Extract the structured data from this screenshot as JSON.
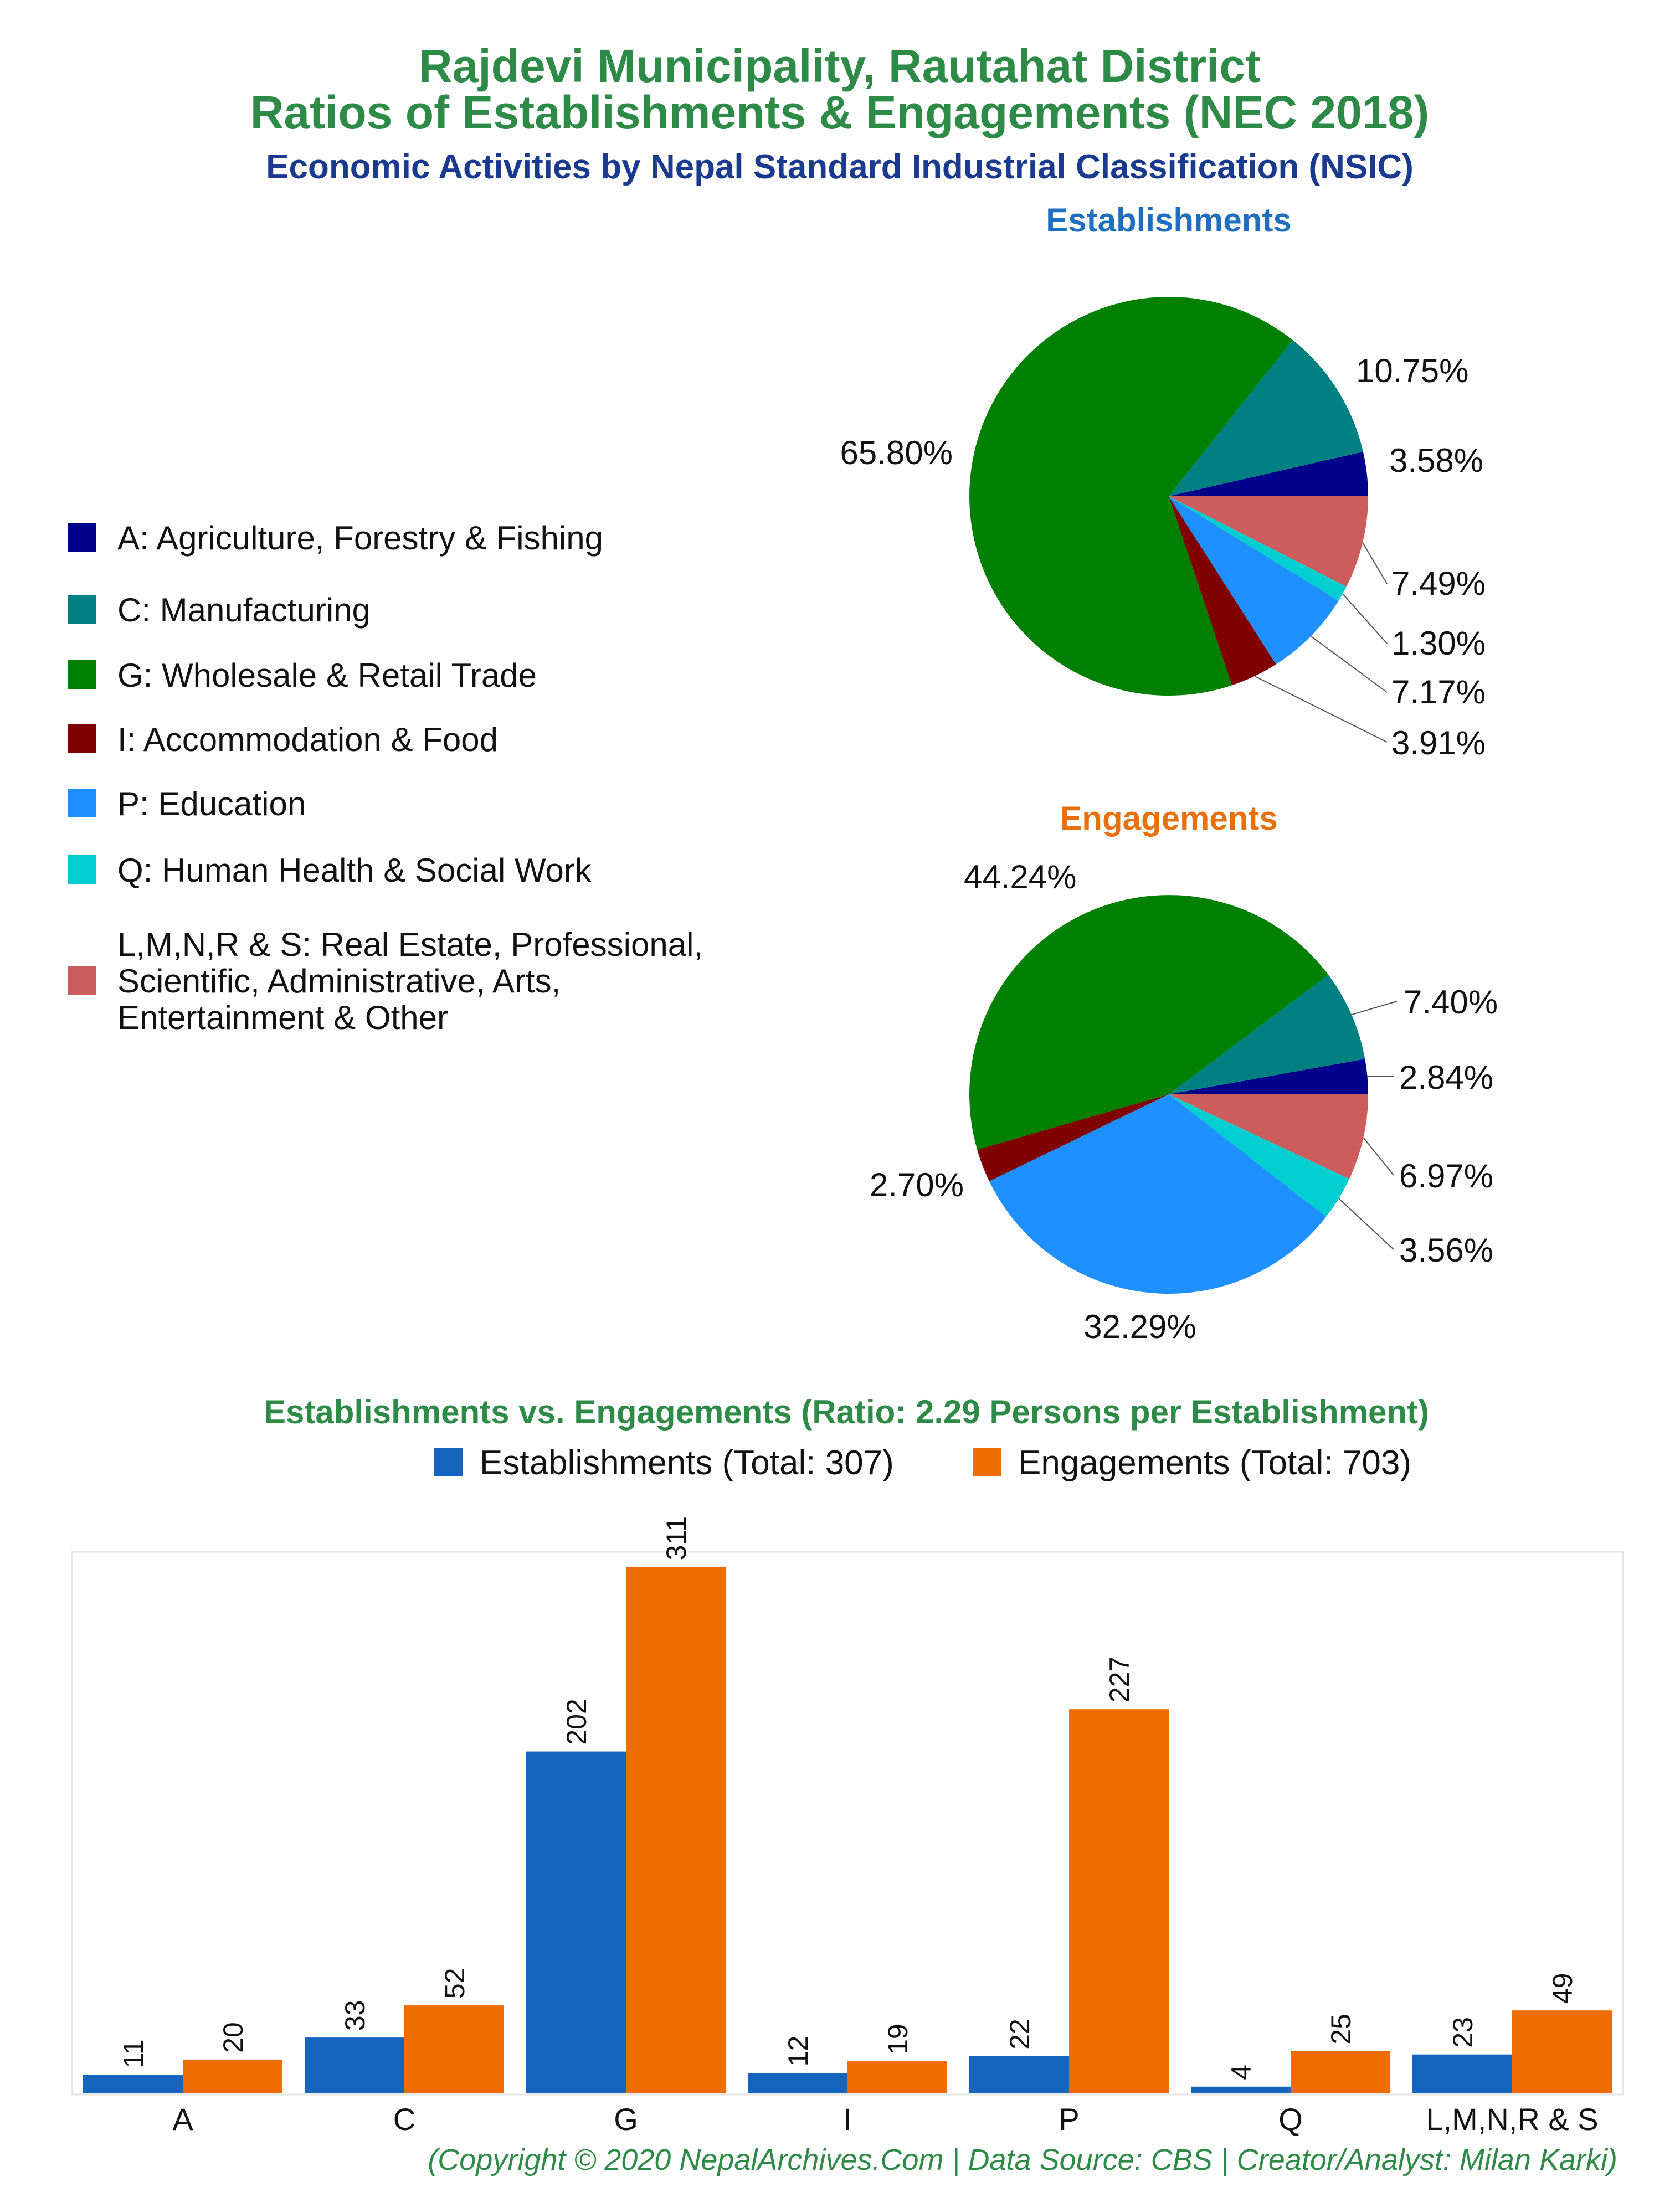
{
  "titles": {
    "line1": "Rajdevi Municipality, Rautahat District",
    "line2": "Ratios of Establishments & Engagements (NEC 2018)",
    "subtitle": "Economic Activities by Nepal Standard Industrial Classification (NSIC)"
  },
  "colors": {
    "title_green": "#2e8b47",
    "subtitle_blue": "#1a3a8f",
    "establishments_title": "#1e6fc0",
    "engagements_title": "#e8700a",
    "bar_establishments": "#1565c0",
    "bar_engagements": "#ef6c00",
    "footer_green": "#2e8b47"
  },
  "legend": [
    {
      "key": "A",
      "label": "A: Agriculture, Forestry & Fishing",
      "color": "#00008b"
    },
    {
      "key": "C",
      "label": "C: Manufacturing",
      "color": "#008080"
    },
    {
      "key": "G",
      "label": "G: Wholesale & Retail Trade",
      "color": "#008000"
    },
    {
      "key": "I",
      "label": "I: Accommodation & Food",
      "color": "#800000"
    },
    {
      "key": "P",
      "label": "P: Education",
      "color": "#1e90ff"
    },
    {
      "key": "Q",
      "label": "Q: Human Health & Social Work",
      "color": "#00ced1"
    },
    {
      "key": "L",
      "label_lines": [
        "L,M,N,R & S: Real Estate, Professional,",
        "Scientific, Administrative, Arts,",
        "Entertainment & Other"
      ],
      "color": "#cd5c5c"
    }
  ],
  "chart_data": [
    {
      "type": "pie",
      "title": "Establishments",
      "slices": [
        {
          "key": "A",
          "value": 3.58,
          "label": "3.58%"
        },
        {
          "key": "C",
          "value": 10.75,
          "label": "10.75%"
        },
        {
          "key": "G",
          "value": 65.8,
          "label": "65.80%"
        },
        {
          "key": "I",
          "value": 3.91,
          "label": "3.91%"
        },
        {
          "key": "P",
          "value": 7.17,
          "label": "7.17%"
        },
        {
          "key": "Q",
          "value": 1.3,
          "label": "1.30%"
        },
        {
          "key": "L",
          "value": 7.49,
          "label": "7.49%"
        }
      ]
    },
    {
      "type": "pie",
      "title": "Engagements",
      "slices": [
        {
          "key": "A",
          "value": 2.84,
          "label": "2.84%"
        },
        {
          "key": "C",
          "value": 7.4,
          "label": "7.40%"
        },
        {
          "key": "G",
          "value": 44.24,
          "label": "44.24%"
        },
        {
          "key": "I",
          "value": 2.7,
          "label": "2.70%"
        },
        {
          "key": "P",
          "value": 32.29,
          "label": "32.29%"
        },
        {
          "key": "Q",
          "value": 3.56,
          "label": "3.56%"
        },
        {
          "key": "L",
          "value": 6.97,
          "label": "6.97%"
        }
      ]
    },
    {
      "type": "bar",
      "title": "Establishments vs. Engagements (Ratio: 2.29 Persons per Establishment)",
      "categories": [
        "A",
        "C",
        "G",
        "I",
        "P",
        "Q",
        "L,M,N,R & S"
      ],
      "series": [
        {
          "name": "Establishments (Total: 307)",
          "values": [
            11,
            33,
            202,
            12,
            22,
            4,
            23
          ]
        },
        {
          "name": "Engagements (Total: 703)",
          "values": [
            20,
            52,
            311,
            19,
            227,
            25,
            49
          ]
        }
      ],
      "ylim": [
        0,
        320
      ],
      "grid": false,
      "legend_position": "top"
    }
  ],
  "footer": "(Copyright © 2020 NepalArchives.Com | Data Source: CBS | Creator/Analyst: Milan Karki)"
}
